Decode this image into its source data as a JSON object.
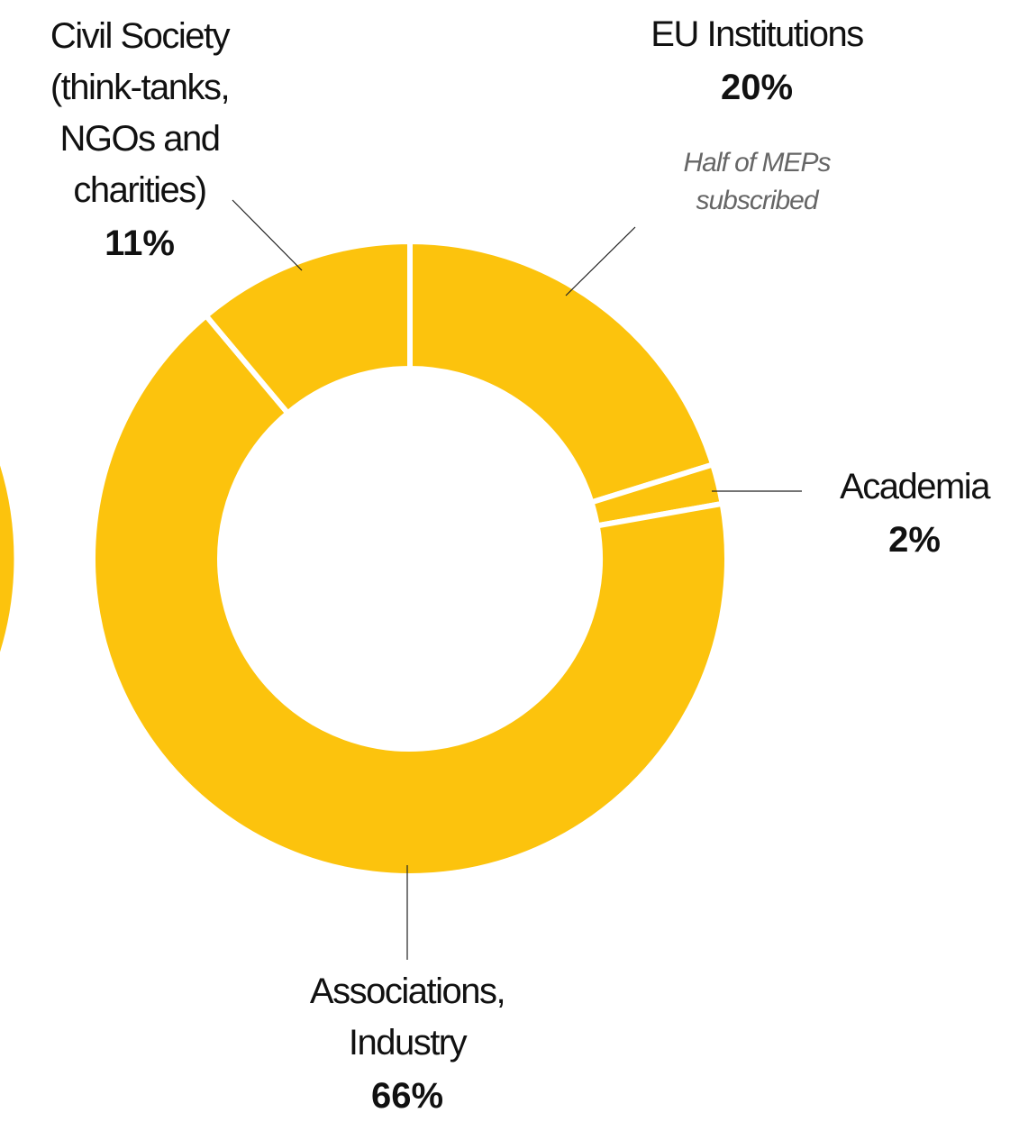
{
  "chart_data": {
    "type": "donut",
    "categories": [
      "EU Institutions",
      "Academia",
      "Associations, Industry",
      "Civil Society (think-tanks, NGOs and charities)"
    ],
    "values": [
      20,
      2,
      66,
      11
    ],
    "value_labels": [
      "20%",
      "2%",
      "66%",
      "11%"
    ],
    "color": "#fcc30d",
    "annotation": "Half of MEPs subscribed"
  }
}
